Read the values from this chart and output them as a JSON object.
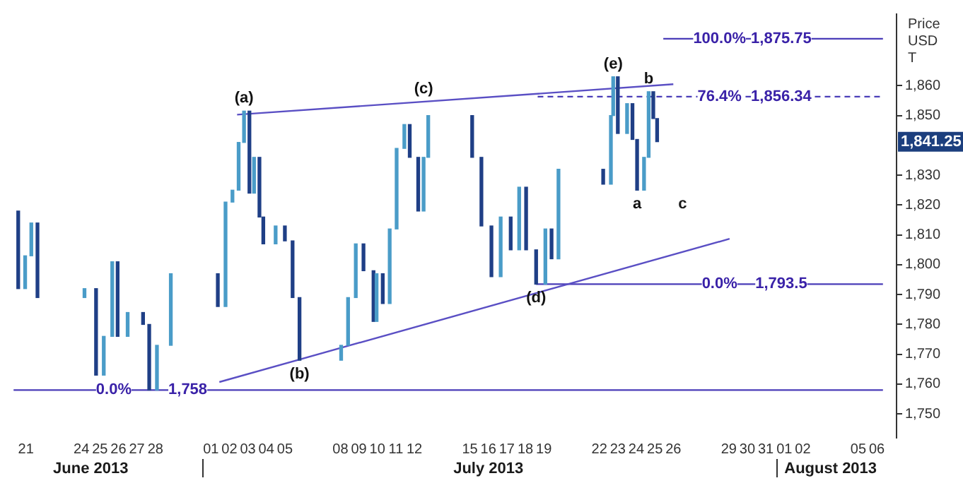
{
  "chart_data": {
    "type": "candlestick",
    "x": [
      "2013-06-20T14:00",
      "2013-06-20T23:00",
      "2013-06-21T07:00",
      "2013-06-21T15:00",
      "2013-06-24T04:00",
      "2013-06-24T19:00",
      "2013-06-25T05:00",
      "2013-06-25T16:00",
      "2013-06-25T23:00",
      "2013-06-26T12:00",
      "2013-06-27T08:00",
      "2013-06-27T16:00",
      "2013-06-28T02:00",
      "2013-06-28T20:00",
      "2013-07-01T09:00",
      "2013-07-01T19:00",
      "2013-07-02T04:00",
      "2013-07-02T12:00",
      "2013-07-02T19:00",
      "2013-07-03T02:00",
      "2013-07-03T08:00",
      "2013-07-03T15:00",
      "2013-07-03T20:00",
      "2013-07-04T12:00",
      "2013-07-05T00:00",
      "2013-07-05T10:00",
      "2013-07-05T19:00",
      "2013-07-08T01:00",
      "2013-07-08T10:00",
      "2013-07-08T20:00",
      "2013-07-09T06:00",
      "2013-07-09T19:00",
      "2013-07-09T23:00",
      "2013-07-10T07:00",
      "2013-07-10T16:00",
      "2013-07-11T01:00",
      "2013-07-11T11:00",
      "2013-07-11T18:00",
      "2013-07-12T05:00",
      "2013-07-12T12:00",
      "2013-07-12T18:00",
      "2013-07-15T03:00",
      "2013-07-15T15:00",
      "2013-07-16T04:00",
      "2013-07-16T16:00",
      "2013-07-17T05:00",
      "2013-07-17T16:00",
      "2013-07-18T01:00",
      "2013-07-18T14:00",
      "2013-07-19T02:00",
      "2013-07-19T10:00",
      "2013-07-19T19:00",
      "2013-07-22T05:00",
      "2013-07-22T15:00",
      "2013-07-22T18:00",
      "2013-07-23T00:00",
      "2013-07-23T12:00",
      "2013-07-23T19:00",
      "2013-07-24T01:00",
      "2013-07-24T10:00",
      "2013-07-24T16:00",
      "2013-07-24T22:00",
      "2013-07-25T03:00"
    ],
    "ohlc": [
      [
        1818,
        1818,
        1792,
        1792
      ],
      [
        1792,
        1803,
        1792,
        1803
      ],
      [
        1803,
        1814,
        1803,
        1814
      ],
      [
        1814,
        1814,
        1789,
        1789
      ],
      [
        1789,
        1792,
        1789,
        1792
      ],
      [
        1792,
        1792,
        1763,
        1763
      ],
      [
        1763,
        1776,
        1763,
        1776
      ],
      [
        1776,
        1801,
        1776,
        1801
      ],
      [
        1801,
        1801,
        1776,
        1776
      ],
      [
        1776,
        1784,
        1776,
        1784
      ],
      [
        1784,
        1784,
        1780,
        1780
      ],
      [
        1780,
        1780,
        1758,
        1758
      ],
      [
        1758,
        1773,
        1758,
        1773
      ],
      [
        1773,
        1797,
        1773,
        1797
      ],
      [
        1797,
        1797,
        1786,
        1786
      ],
      [
        1786,
        1821,
        1786,
        1821
      ],
      [
        1821,
        1825,
        1821,
        1825
      ],
      [
        1825,
        1841,
        1825,
        1841
      ],
      [
        1841,
        1851.5,
        1841,
        1851.5
      ],
      [
        1851.5,
        1851.5,
        1824,
        1824
      ],
      [
        1824,
        1836,
        1824,
        1836
      ],
      [
        1836,
        1836,
        1816,
        1816
      ],
      [
        1816,
        1816,
        1807,
        1807
      ],
      [
        1807,
        1813,
        1807,
        1813
      ],
      [
        1813,
        1813,
        1808,
        1808
      ],
      [
        1808,
        1808,
        1789,
        1789
      ],
      [
        1789,
        1789,
        1768,
        1768
      ],
      [
        1768,
        1773,
        1768,
        1773
      ],
      [
        1773,
        1789,
        1773,
        1789
      ],
      [
        1789,
        1807,
        1789,
        1807
      ],
      [
        1807,
        1807,
        1798,
        1798
      ],
      [
        1798,
        1798,
        1781,
        1781
      ],
      [
        1781,
        1797,
        1781,
        1797
      ],
      [
        1797,
        1797,
        1787,
        1787
      ],
      [
        1787,
        1812,
        1787,
        1812
      ],
      [
        1812,
        1839,
        1812,
        1839
      ],
      [
        1839,
        1847,
        1839,
        1847
      ],
      [
        1847,
        1847,
        1836,
        1836
      ],
      [
        1836,
        1836,
        1818,
        1818
      ],
      [
        1818,
        1836,
        1818,
        1836
      ],
      [
        1836,
        1850,
        1836,
        1850
      ],
      [
        1850,
        1850,
        1836,
        1836
      ],
      [
        1836,
        1836,
        1813,
        1813
      ],
      [
        1813,
        1813,
        1796,
        1796
      ],
      [
        1796,
        1816,
        1796,
        1816
      ],
      [
        1816,
        1816,
        1805,
        1805
      ],
      [
        1805,
        1826,
        1805,
        1826
      ],
      [
        1826,
        1826,
        1805,
        1805
      ],
      [
        1805,
        1805,
        1793.5,
        1793.5
      ],
      [
        1793.5,
        1812,
        1793.5,
        1812
      ],
      [
        1812,
        1812,
        1802,
        1802
      ],
      [
        1802,
        1832,
        1802,
        1832
      ],
      [
        1832,
        1832,
        1827,
        1827
      ],
      [
        1827,
        1850,
        1827,
        1850
      ],
      [
        1850,
        1863,
        1850,
        1863
      ],
      [
        1863,
        1863,
        1844,
        1844
      ],
      [
        1844,
        1854,
        1844,
        1854
      ],
      [
        1854,
        1854,
        1842,
        1842
      ],
      [
        1842,
        1842,
        1825,
        1825
      ],
      [
        1825,
        1836,
        1825,
        1836
      ],
      [
        1836,
        1858,
        1836,
        1858
      ],
      [
        1858,
        1858,
        1849,
        1849
      ],
      [
        1849,
        1849,
        1841.25,
        1841.25
      ]
    ],
    "colors": [
      "#1f3f86",
      "#4a9cc8",
      "#4a9cc8",
      "#1f3f86",
      "#4a9cc8",
      "#1f3f86",
      "#4a9cc8",
      "#4a9cc8",
      "#1f3f86",
      "#4a9cc8",
      "#1f3f86",
      "#1f3f86",
      "#4a9cc8",
      "#4a9cc8",
      "#1f3f86",
      "#4a9cc8",
      "#4a9cc8",
      "#4a9cc8",
      "#4a9cc8",
      "#1f3f86",
      "#4a9cc8",
      "#1f3f86",
      "#1f3f86",
      "#4a9cc8",
      "#1f3f86",
      "#1f3f86",
      "#1f3f86",
      "#4a9cc8",
      "#4a9cc8",
      "#4a9cc8",
      "#1f3f86",
      "#1f3f86",
      "#4a9cc8",
      "#1f3f86",
      "#4a9cc8",
      "#4a9cc8",
      "#4a9cc8",
      "#1f3f86",
      "#1f3f86",
      "#4a9cc8",
      "#4a9cc8",
      "#1f3f86",
      "#1f3f86",
      "#1f3f86",
      "#4a9cc8",
      "#1f3f86",
      "#4a9cc8",
      "#1f3f86",
      "#1f3f86",
      "#4a9cc8",
      "#1f3f86",
      "#4a9cc8",
      "#1f3f86",
      "#4a9cc8",
      "#4a9cc8",
      "#1f3f86",
      "#4a9cc8",
      "#1f3f86",
      "#1f3f86",
      "#4a9cc8",
      "#4a9cc8",
      "#1f3f86",
      "#1f3f86"
    ],
    "series": [
      {
        "type": "line",
        "color": "#5a4fc4",
        "x": [
          "2013-07-02T10:00",
          "2013-07-26T00:00"
        ],
        "values": [
          1850.3,
          1860.5
        ]
      },
      {
        "type": "line",
        "color": "#5a4fc4",
        "x": [
          "2013-07-01T11:00",
          "2013-07-29T01:00"
        ],
        "values": [
          1760.7,
          1808.7
        ]
      },
      {
        "type": "line",
        "color": "#4a3db8",
        "x": [
          "2013-07-25T11:00",
          "2013-08-06T08:00"
        ],
        "values": [
          1875.75,
          1875.75
        ]
      },
      {
        "type": "line",
        "color": "#4a3db8",
        "line_style": "dashed",
        "x": [
          "2013-07-18T16:00",
          "2013-08-06T08:00"
        ],
        "values": [
          1856.34,
          1856.34
        ]
      },
      {
        "type": "line",
        "color": "#4a3db8",
        "x": [
          "2013-07-18T14:00",
          "2013-08-06T08:00"
        ],
        "values": [
          1793.5,
          1793.5
        ]
      },
      {
        "type": "line",
        "color": "#4a3db8",
        "x": [
          "2013-06-20T08:00",
          "2013-08-06T08:00"
        ],
        "values": [
          1758,
          1758
        ]
      }
    ],
    "annotations": [
      {
        "text": "(a)",
        "x": "2013-07-02T19:00",
        "y": 1851.5
      },
      {
        "text": "(b)",
        "x": "2013-07-05T19:00",
        "y": 1768
      },
      {
        "text": "(c)",
        "x": "2013-07-12T12:00",
        "y": 1854.7
      },
      {
        "text": "(d)",
        "x": "2013-07-18T14:00",
        "y": 1793.5
      },
      {
        "text": "(e)",
        "x": "2013-07-22T18:00",
        "y": 1863
      },
      {
        "text": "a",
        "x": "2013-07-24T01:00",
        "y": 1825
      },
      {
        "text": "b",
        "x": "2013-07-24T16:00",
        "y": 1858
      },
      "c",
      {
        "text": "100.0%",
        "x": "2013-07-28T12:00",
        "y": 1875.75
      },
      {
        "text": "1,875.75",
        "x": "2013-07-31T20:00",
        "y": 1875.75
      },
      {
        "text": "76.4%",
        "x": "2013-07-28T12:00",
        "y": 1856.34
      },
      {
        "text": "1,856.34",
        "x": "2013-07-31T20:00",
        "y": 1856.34
      },
      {
        "text": "0.0%",
        "x": "2013-07-28T12:00",
        "y": 1793.5
      },
      {
        "text": "1,793.5",
        "x": "2013-07-31T20:00",
        "y": 1793.5
      },
      {
        "text": "0.0%",
        "x": "2013-06-25T18:00",
        "y": 1758
      },
      {
        "text": "1,758",
        "x": "2013-06-29T18:00",
        "y": 1758
      },
      "1,841.25",
      "June 2013",
      "July 2013",
      "August 2013"
    ],
    "ylabel": "Price USD T",
    "xlim": [
      "2013-06-20T08:00",
      "2013-08-06T08:00"
    ],
    "xticks": [
      {
        "value": "2013-06-21",
        "label": "21"
      },
      {
        "value": "2013-06-24",
        "label": "24"
      },
      {
        "value": "2013-06-25",
        "label": "25"
      },
      {
        "value": "2013-06-26",
        "label": "26"
      },
      {
        "value": "2013-06-27",
        "label": "27"
      },
      {
        "value": "2013-06-28",
        "label": "28"
      },
      {
        "value": "2013-07-01",
        "label": "01"
      },
      {
        "value": "2013-07-02",
        "label": "02"
      },
      {
        "value": "2013-07-03",
        "label": "03"
      },
      {
        "value": "2013-07-04",
        "label": "04"
      },
      {
        "value": "2013-07-05",
        "label": "05"
      },
      {
        "value": "2013-07-08",
        "label": "08"
      },
      {
        "value": "2013-07-09",
        "label": "09"
      },
      {
        "value": "2013-07-10",
        "label": "10"
      },
      {
        "value": "2013-07-11",
        "label": "11"
      },
      {
        "value": "2013-07-12",
        "label": "12"
      },
      {
        "value": "2013-07-15",
        "label": "15"
      },
      {
        "value": "2013-07-16",
        "label": "16"
      },
      {
        "value": "2013-07-17",
        "label": "17"
      },
      {
        "value": "2013-07-18",
        "label": "18"
      },
      {
        "value": "2013-07-19",
        "label": "19"
      },
      {
        "value": "2013-07-22",
        "label": "22"
      },
      {
        "value": "2013-07-23",
        "label": "23"
      },
      {
        "value": "2013-07-24",
        "label": "24"
      },
      {
        "value": "2013-07-25",
        "label": "25"
      },
      {
        "value": "2013-07-26",
        "label": "26"
      },
      {
        "value": "2013-07-29",
        "label": "29"
      },
      {
        "value": "2013-07-30",
        "label": "30"
      },
      {
        "value": "2013-07-31",
        "label": "31"
      },
      {
        "value": "2013-08-01",
        "label": "01"
      },
      {
        "value": "2013-08-02",
        "label": "02"
      },
      {
        "value": "2013-08-05",
        "label": "05"
      },
      {
        "value": "2013-08-06",
        "label": "06"
      }
    ],
    "ylim": [
      1742,
      1884
    ],
    "yticks": [
      {
        "value": 1750,
        "label": "1,750"
      },
      {
        "value": 1760,
        "label": "1,760"
      },
      {
        "value": 1770,
        "label": "1,770"
      },
      {
        "value": 1780,
        "label": "1,780"
      },
      {
        "value": 1790,
        "label": "1,790"
      },
      {
        "value": 1800,
        "label": "1,800"
      },
      {
        "value": 1810,
        "label": "1,810"
      },
      {
        "value": 1820,
        "label": "1,820"
      },
      {
        "value": 1830,
        "label": "1,830"
      },
      {
        "value": 1850,
        "label": "1,850"
      },
      {
        "value": 1860,
        "label": "1,860"
      }
    ],
    "grid": false,
    "legend": false
  }
}
